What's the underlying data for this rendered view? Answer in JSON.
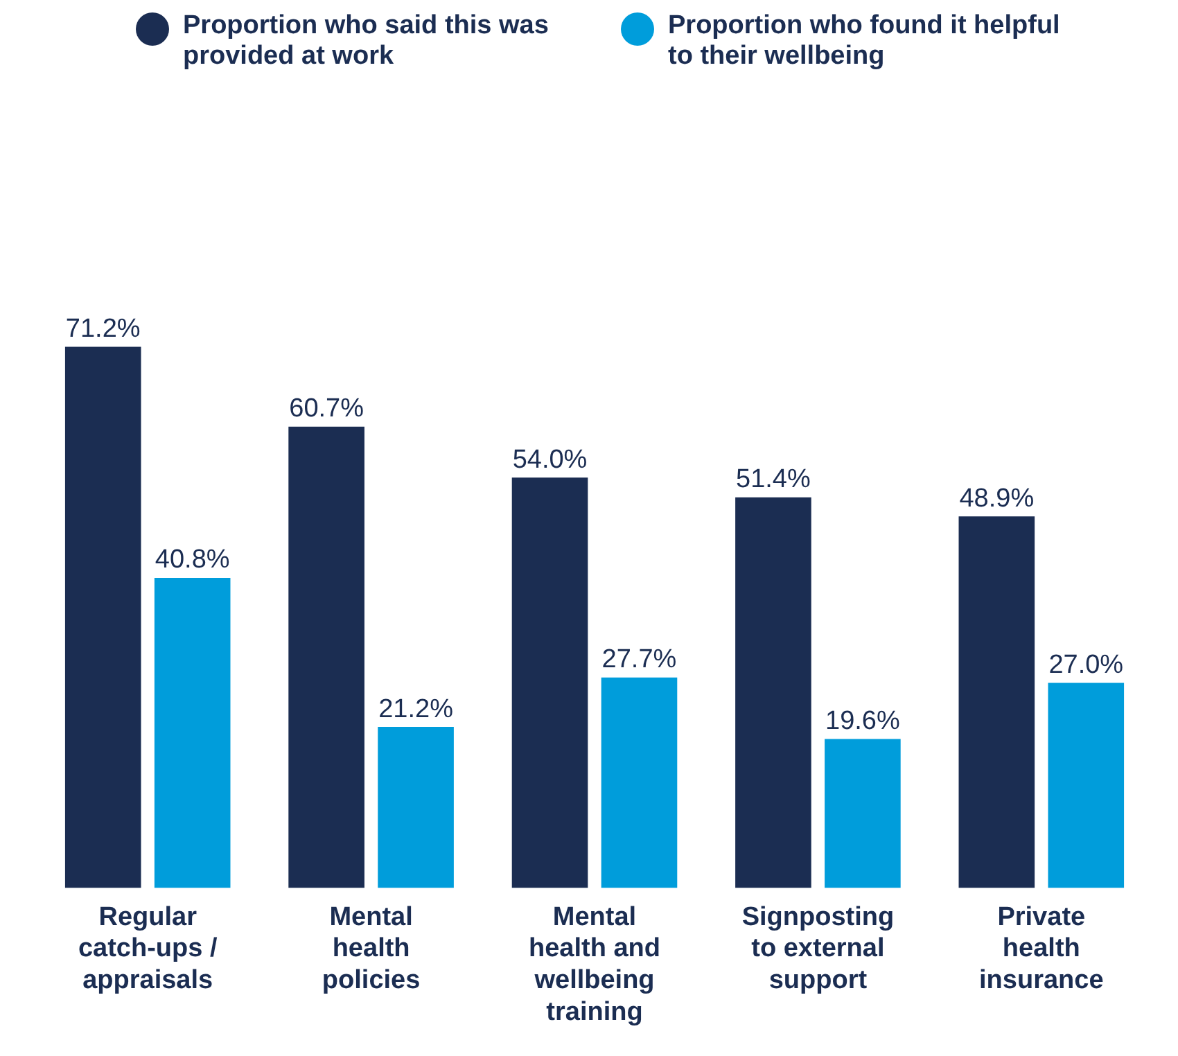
{
  "chart_data": {
    "type": "bar",
    "relative": false,
    "categories": [
      "Regular catch-ups / appraisals",
      "Mental health policies",
      "Mental health and wellbeing training",
      "Signposting to external support",
      "Private health insurance"
    ],
    "series": [
      {
        "name": "Proportion who said this was provided at work",
        "color": "#1b2d52",
        "values": [
          71.2,
          60.7,
          54.0,
          51.4,
          48.9
        ],
        "value_labels": [
          "71.2%",
          "60.7%",
          "54.0%",
          "51.4%",
          "48.9%"
        ]
      },
      {
        "name": "Proportion who found it helpful to their wellbeing",
        "color": "#009ddb",
        "values": [
          40.8,
          21.2,
          27.7,
          19.6,
          27.0
        ],
        "value_labels": [
          "40.8%",
          "21.2%",
          "27.7%",
          "19.6%",
          "27.0%"
        ]
      }
    ],
    "legend": "top left",
    "grid": false
  }
}
